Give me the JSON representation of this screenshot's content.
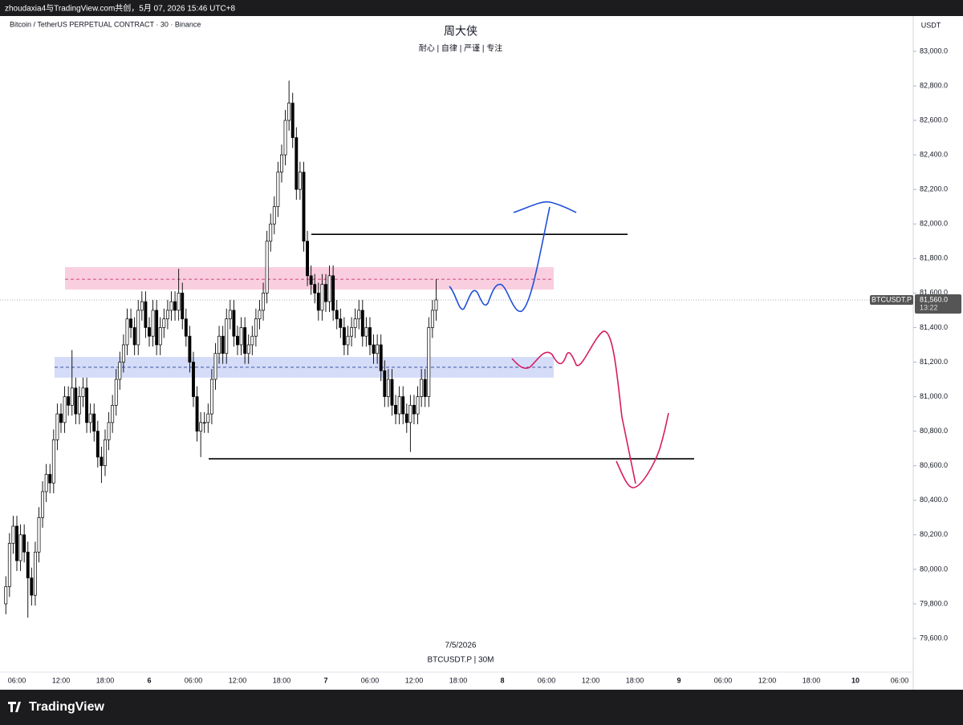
{
  "header": "zhoudaxia4与TradingView.com共创，5月 07, 2026 15:46 UTC+8",
  "footer_logo": "TradingView",
  "chart_data": {
    "type": "candlestick",
    "symbol_title": "Bitcoin / TetherUS PERPETUAL CONTRACT · 30 · Binance",
    "title": "周大侠",
    "subtitle": "耐心 | 自律 | 严谨 | 专注",
    "watermark_date": "7/5/2026",
    "watermark_symbol": "BTCUSDT.P | 30M",
    "currency": "USDT",
    "up_color": "#ffffff",
    "down_color": "#000000",
    "wick_color": "#000000",
    "ylim": [
      79405,
      83204
    ],
    "yticks": [
      {
        "value": 79600,
        "label": "79,600.0"
      },
      {
        "value": 79800,
        "label": "79,800.0"
      },
      {
        "value": 80000,
        "label": "80,000.0"
      },
      {
        "value": 80200,
        "label": "80,200.0"
      },
      {
        "value": 80400,
        "label": "80,400.0"
      },
      {
        "value": 80600,
        "label": "80,600.0"
      },
      {
        "value": 80800,
        "label": "80,800.0"
      },
      {
        "value": 81000,
        "label": "81,000.0"
      },
      {
        "value": 81200,
        "label": "81,200.0"
      },
      {
        "value": 81400,
        "label": "81,400.0"
      },
      {
        "value": 81600,
        "label": "81,600.0"
      },
      {
        "value": 81800,
        "label": "81,800.0"
      },
      {
        "value": 82000,
        "label": "82,000.0"
      },
      {
        "value": 82200,
        "label": "82,200.0"
      },
      {
        "value": 82400,
        "label": "82,400.0"
      },
      {
        "value": 82600,
        "label": "82,600.0"
      },
      {
        "value": 82800,
        "label": "82,800.0"
      },
      {
        "value": 83000,
        "label": "83,000.0"
      }
    ],
    "x_axis_labels": [
      "06:00",
      "12:00",
      "18:00",
      "6",
      "06:00",
      "12:00",
      "18:00",
      "7",
      "06:00",
      "12:00",
      "18:00",
      "8",
      "06:00",
      "12:00",
      "18:00",
      "9",
      "06:00",
      "12:00",
      "18:00",
      "10",
      "06:00"
    ],
    "open": [
      79800,
      79900,
      80150,
      80250,
      80050,
      80200,
      80100,
      79950,
      79850,
      80100,
      80300,
      80450,
      80550,
      80500,
      80750,
      80900,
      80850,
      81000,
      80950,
      81050,
      80900,
      81000,
      81050,
      80850,
      80900,
      80800,
      80650,
      80600,
      80750,
      80850,
      80950,
      81100,
      81200,
      81300,
      81450,
      81400,
      81300,
      81500,
      81550,
      81400,
      81350,
      81500,
      81300,
      81400,
      81450,
      81500,
      81550,
      81500,
      81600,
      81450,
      81350,
      81200,
      81000,
      80800,
      80850,
      80850,
      80900,
      81100,
      81250,
      81350,
      81250,
      81450,
      81500,
      81350,
      81300,
      81400,
      81250,
      81300,
      81350,
      81450,
      81500,
      81600,
      81900,
      82000,
      82100,
      82300,
      82400,
      82600,
      82700,
      82500,
      82200,
      82300,
      81900,
      81700,
      81650,
      81600,
      81500,
      81650,
      81550,
      81700,
      81500,
      81450,
      81400,
      81300,
      81350,
      81400,
      81450,
      81500,
      81350,
      81400,
      81300,
      81250,
      81300,
      81150,
      81000,
      81100,
      80950,
      80900,
      81000,
      80900,
      80850,
      80950,
      80900,
      81000,
      81100,
      81000,
      81400,
      81500
    ],
    "high": [
      79960,
      80210,
      80310,
      80310,
      80260,
      80260,
      80160,
      80010,
      80160,
      80360,
      80510,
      80610,
      80610,
      80810,
      80960,
      80960,
      81060,
      81060,
      81270,
      81110,
      81060,
      81110,
      81110,
      80960,
      80960,
      80860,
      80710,
      80810,
      80910,
      81010,
      81160,
      81260,
      81360,
      81510,
      81510,
      81460,
      81560,
      81610,
      81610,
      81460,
      81560,
      81560,
      81460,
      81510,
      81560,
      81610,
      81610,
      81740,
      81660,
      81510,
      81410,
      81260,
      81060,
      80910,
      80910,
      80960,
      81160,
      81310,
      81410,
      81410,
      81510,
      81560,
      81560,
      81410,
      81460,
      81460,
      81360,
      81410,
      81510,
      81560,
      81660,
      81960,
      82060,
      82160,
      82360,
      82460,
      82660,
      82830,
      82760,
      82560,
      82360,
      82360,
      81960,
      81760,
      81710,
      81660,
      81710,
      81710,
      81760,
      81760,
      81560,
      81510,
      81460,
      81410,
      81460,
      81510,
      81560,
      81560,
      81460,
      81460,
      81360,
      81360,
      81360,
      81210,
      81160,
      81160,
      81010,
      81060,
      81060,
      80960,
      81010,
      81010,
      81060,
      81160,
      81160,
      81460,
      81560,
      81680
    ],
    "low": [
      79740,
      79840,
      80090,
      79990,
      79990,
      80040,
      79720,
      79790,
      79790,
      80040,
      80240,
      80390,
      80440,
      80440,
      80690,
      80790,
      80790,
      80890,
      80890,
      80840,
      80840,
      80940,
      80790,
      80790,
      80740,
      80590,
      80500,
      80540,
      80690,
      80790,
      80890,
      81040,
      81140,
      81240,
      81340,
      81240,
      81240,
      81440,
      81340,
      81290,
      81290,
      81240,
      81240,
      81340,
      81390,
      81440,
      81440,
      81440,
      81390,
      81290,
      81140,
      80940,
      80740,
      80650,
      80790,
      80790,
      80840,
      81040,
      81190,
      81190,
      81190,
      81390,
      81290,
      81240,
      81240,
      81190,
      81190,
      81240,
      81290,
      81390,
      81440,
      81540,
      81840,
      81940,
      82040,
      82240,
      82340,
      82540,
      82440,
      82140,
      82140,
      81840,
      81640,
      81590,
      81540,
      81440,
      81440,
      81490,
      81490,
      81440,
      81390,
      81340,
      81240,
      81240,
      81290,
      81340,
      81390,
      81290,
      81290,
      81240,
      81190,
      81190,
      81090,
      80940,
      80940,
      80890,
      80840,
      80840,
      80840,
      80790,
      80680,
      80840,
      80840,
      80940,
      80940,
      80940,
      81340,
      81440
    ],
    "close": [
      79900,
      80150,
      80250,
      80050,
      80200,
      80100,
      79950,
      79850,
      80100,
      80300,
      80450,
      80550,
      80500,
      80750,
      80900,
      80850,
      81000,
      80950,
      81050,
      80900,
      81000,
      81050,
      80850,
      80900,
      80800,
      80650,
      80600,
      80750,
      80850,
      80950,
      81100,
      81200,
      81300,
      81450,
      81400,
      81300,
      81500,
      81550,
      81400,
      81350,
      81500,
      81300,
      81400,
      81450,
      81500,
      81550,
      81500,
      81600,
      81450,
      81350,
      81200,
      81000,
      80800,
      80850,
      80850,
      80900,
      81100,
      81250,
      81350,
      81250,
      81450,
      81500,
      81350,
      81300,
      81400,
      81250,
      81300,
      81350,
      81450,
      81500,
      81600,
      81900,
      82000,
      82100,
      82300,
      82400,
      82600,
      82700,
      82500,
      82200,
      82300,
      81900,
      81700,
      81650,
      81600,
      81500,
      81650,
      81550,
      81700,
      81500,
      81450,
      81400,
      81300,
      81350,
      81400,
      81450,
      81500,
      81350,
      81400,
      81300,
      81250,
      81300,
      81150,
      81000,
      81100,
      80950,
      80900,
      81000,
      80900,
      80850,
      80950,
      80900,
      81000,
      81100,
      81000,
      81400,
      81500,
      81560
    ],
    "zones": [
      {
        "top": 81750,
        "bottom": 81620,
        "mid": 81680,
        "color": "#f9cfe0",
        "line_color": "#c2185b"
      },
      {
        "top": 81230,
        "bottom": 81110,
        "mid": 81170,
        "color": "#d4dcf8",
        "line_color": "#2a3f9c"
      }
    ],
    "levels": [
      81940,
      80640
    ],
    "last_price": {
      "value": 81560,
      "label": "81,560.0",
      "symbol": "BTCUSDT.P",
      "countdown": "13:22"
    }
  }
}
